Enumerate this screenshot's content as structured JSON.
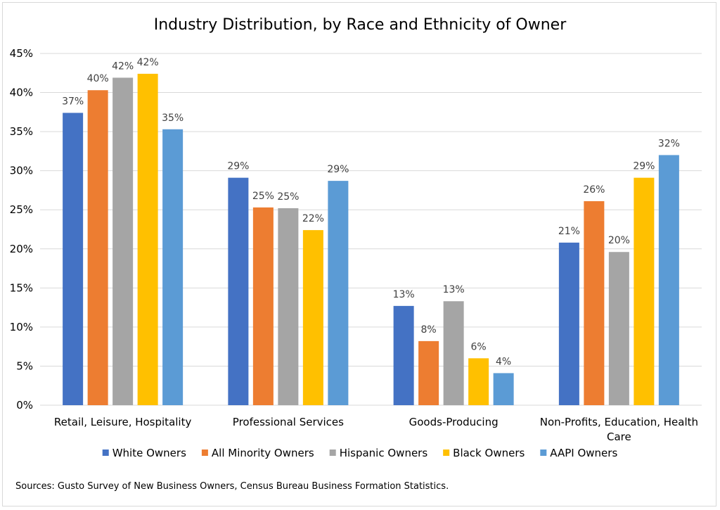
{
  "chart_data": {
    "type": "bar",
    "title": "Industry Distribution, by Race and Ethnicity of Owner",
    "xlabel": "",
    "ylabel": "",
    "ylim": [
      0,
      45
    ],
    "y_ticks": [
      "0%",
      "5%",
      "10%",
      "15%",
      "20%",
      "25%",
      "30%",
      "35%",
      "40%",
      "45%"
    ],
    "grid": "horizontal",
    "legend_position": "bottom",
    "categories": [
      [
        "Retail, Leisure, Hospitality"
      ],
      [
        "Professional Services"
      ],
      [
        "Goods-Producing"
      ],
      [
        "Non-Profits, Education, Health",
        "Care"
      ]
    ],
    "series": [
      {
        "name": "White Owners",
        "color": "#4472c4",
        "values": [
          37.4,
          29.1,
          12.7,
          20.8
        ],
        "labels": [
          "37%",
          "29%",
          "13%",
          "21%"
        ]
      },
      {
        "name": "All Minority Owners",
        "color": "#ed7d31",
        "values": [
          40.3,
          25.3,
          8.2,
          26.1
        ],
        "labels": [
          "40%",
          "25%",
          "8%",
          "26%"
        ]
      },
      {
        "name": "Hispanic Owners",
        "color": "#a5a5a5",
        "values": [
          41.9,
          25.2,
          13.3,
          19.6
        ],
        "labels": [
          "42%",
          "25%",
          "13%",
          "20%"
        ]
      },
      {
        "name": "Black Owners",
        "color": "#ffc000",
        "values": [
          42.4,
          22.4,
          6.0,
          29.1
        ],
        "labels": [
          "42%",
          "22%",
          "6%",
          "29%"
        ]
      },
      {
        "name": "AAPI Owners",
        "color": "#5b9bd5",
        "values": [
          35.3,
          28.7,
          4.1,
          32.0
        ],
        "labels": [
          "35%",
          "29%",
          "4%",
          "32%"
        ]
      }
    ],
    "source": "Sources: Gusto Survey of New Business Owners, Census Bureau Business Formation Statistics."
  }
}
